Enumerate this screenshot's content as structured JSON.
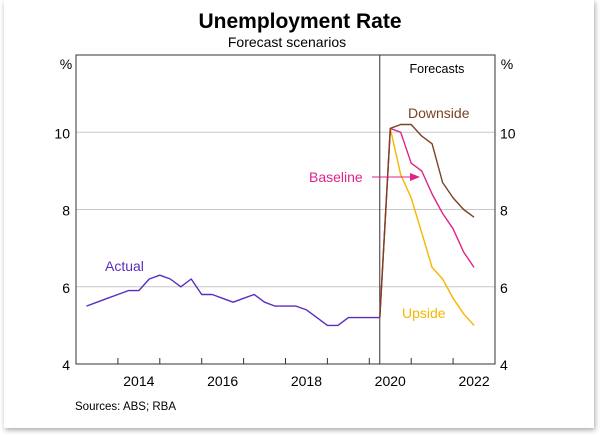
{
  "chart_data": {
    "type": "line",
    "title": "Unemployment Rate",
    "subtitle": "Forecast scenarios",
    "ylabel_left": "%",
    "ylabel_right": "%",
    "ylim": [
      4,
      12
    ],
    "yticks": [
      4,
      6,
      8,
      10
    ],
    "xlim": [
      2013,
      2023
    ],
    "xtick_labels": [
      "2014",
      "2016",
      "2018",
      "2020",
      "2022"
    ],
    "grid": true,
    "forecast_start": 2020.25,
    "forecast_region_label": "Forecasts",
    "source": "Sources: ABS; RBA",
    "series": [
      {
        "name": "Actual",
        "color": "#5a2dbf",
        "x_start": 2013.25,
        "x_step": 0.25,
        "values": [
          5.5,
          5.6,
          5.7,
          5.8,
          5.9,
          5.9,
          6.2,
          6.3,
          6.2,
          6.0,
          6.2,
          5.8,
          5.8,
          5.7,
          5.6,
          5.7,
          5.8,
          5.6,
          5.5,
          5.5,
          5.5,
          5.4,
          5.2,
          5.0,
          5.0,
          5.2,
          5.2,
          5.2,
          5.2
        ]
      },
      {
        "name": "Downside",
        "color": "#7a4225",
        "x_start": 2020.25,
        "x_step": 0.25,
        "values": [
          5.2,
          10.1,
          10.2,
          10.2,
          9.9,
          9.7,
          8.7,
          8.3,
          8.0,
          7.8
        ]
      },
      {
        "name": "Baseline",
        "color": "#e0218a",
        "x_start": 2020.25,
        "x_step": 0.25,
        "values": [
          5.2,
          10.1,
          10.0,
          9.2,
          9.0,
          8.4,
          7.9,
          7.5,
          6.9,
          6.5
        ]
      },
      {
        "name": "Upside",
        "color": "#f7b500",
        "x_start": 2020.25,
        "x_step": 0.25,
        "values": [
          5.2,
          10.1,
          8.9,
          8.3,
          7.4,
          6.5,
          6.2,
          5.7,
          5.3,
          5.0
        ]
      }
    ]
  }
}
